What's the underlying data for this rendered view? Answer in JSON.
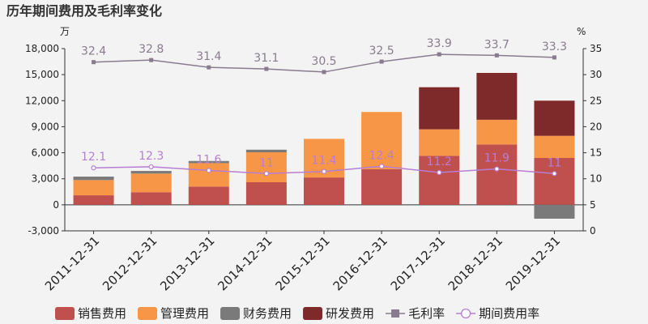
{
  "title": "历年期间费用及毛利率变化",
  "chart_data": {
    "type": "bar",
    "stacked": true,
    "title": "历年期间费用及毛利率变化",
    "left_unit": "万",
    "right_unit": "%",
    "ylim_left": [
      -3000,
      18000
    ],
    "yticks_left": [
      -3000,
      0,
      3000,
      6000,
      9000,
      12000,
      15000,
      18000
    ],
    "ytick_labels_left": [
      "-3,000",
      "0",
      "3,000",
      "6,000",
      "9,000",
      "12,000",
      "15,000",
      "18,000"
    ],
    "ylim_right": [
      0,
      35
    ],
    "yticks_right": [
      0,
      5,
      10,
      15,
      20,
      25,
      30,
      35
    ],
    "ytick_labels_right": [
      "0",
      "5",
      "10",
      "15",
      "20",
      "25",
      "30",
      "35"
    ],
    "categories": [
      "2011-12-31",
      "2012-12-31",
      "2013-12-31",
      "2014-12-31",
      "2015-12-31",
      "2016-12-31",
      "2017-12-31",
      "2018-12-31",
      "2019-12-31"
    ],
    "series": [
      {
        "name": "销售费用",
        "type": "bar",
        "axis": "left",
        "color": "#c0504d",
        "values": [
          1100,
          1450,
          2100,
          2600,
          3150,
          4100,
          5650,
          6950,
          5400
        ]
      },
      {
        "name": "管理费用",
        "type": "bar",
        "axis": "left",
        "color": "#f79646",
        "values": [
          1750,
          2150,
          2700,
          3450,
          4450,
          6600,
          3050,
          2850,
          2550
        ]
      },
      {
        "name": "财务费用",
        "type": "bar",
        "axis": "left",
        "color": "#7a7a7a",
        "values": [
          400,
          300,
          250,
          300,
          0,
          0,
          0,
          0,
          -1600
        ]
      },
      {
        "name": "研发费用",
        "type": "bar",
        "axis": "left",
        "color": "#7f2a2a",
        "values": [
          0,
          0,
          0,
          0,
          0,
          0,
          4850,
          5400,
          4050
        ]
      },
      {
        "name": "毛利率",
        "type": "line",
        "axis": "right",
        "color": "#8a7a8f",
        "marker": "square",
        "values": [
          32.4,
          32.8,
          31.4,
          31.1,
          30.5,
          32.5,
          33.9,
          33.7,
          33.3
        ],
        "labels": [
          "32.4",
          "32.8",
          "31.4",
          "31.1",
          "30.5",
          "32.5",
          "33.9",
          "33.7",
          "33.3"
        ]
      },
      {
        "name": "期间费用率",
        "type": "line",
        "axis": "right",
        "color": "#b77ed4",
        "marker": "circle",
        "values": [
          12.1,
          12.3,
          11.6,
          11,
          11.4,
          12.4,
          11.2,
          11.9,
          11
        ],
        "labels": [
          "12.1",
          "12.3",
          "11.6",
          "11",
          "11.4",
          "12.4",
          "11.2",
          "11.9",
          "11"
        ]
      }
    ],
    "legend_position": "bottom",
    "grid": false
  }
}
